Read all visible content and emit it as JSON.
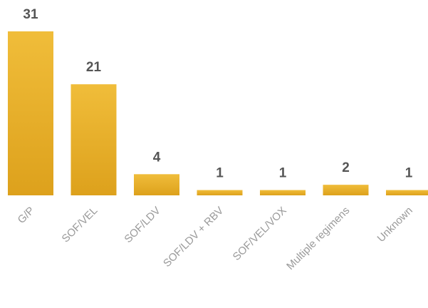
{
  "chart_data": {
    "type": "bar",
    "categories": [
      "G/P",
      "SOF/VEL",
      "SOF/LDV",
      "SOF/LDV + RBV",
      "SOF/VEL/VOX",
      "Multiple regimens",
      "Unknown"
    ],
    "values": [
      31,
      21,
      4,
      1,
      1,
      2,
      1
    ],
    "color": "#e4ad25"
  }
}
